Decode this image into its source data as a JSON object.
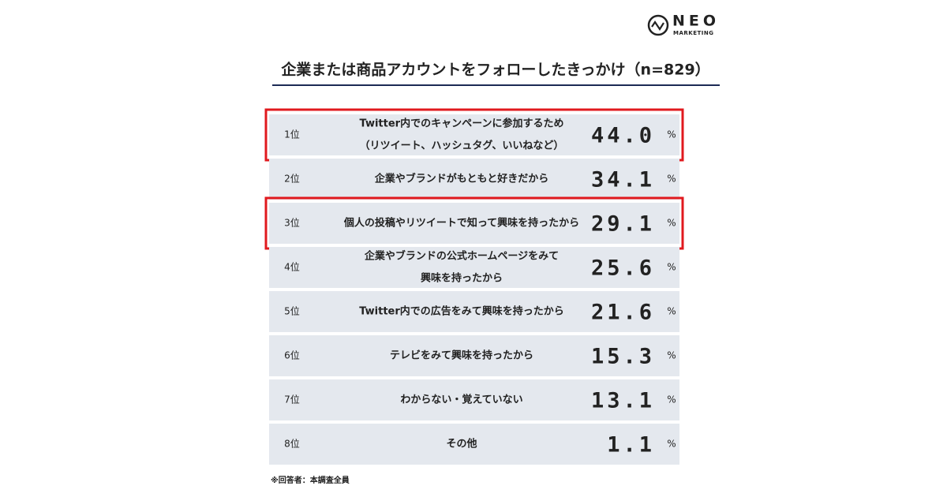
{
  "logo": {
    "name": "NEO",
    "sub": "MARKETING"
  },
  "title": "企業または商品アカウントをフォローしたきっかけ（n=829）",
  "unit": "%",
  "table": {
    "rows": [
      {
        "rank": "1位",
        "text": [
          "Twitter内でのキャンペーンに参加するため",
          "（リツイート、ハッシュタグ、いいねなど）"
        ],
        "value": "44.0",
        "highlight": true,
        "top": true
      },
      {
        "rank": "2位",
        "text": [
          "企業やブランドがもともと好きだから"
        ],
        "value": "34.1",
        "highlight": false,
        "top": true
      },
      {
        "rank": "3位",
        "text": [
          "個人の投稿やリツイートで知って興味を持ったから"
        ],
        "value": "29.1",
        "highlight": true,
        "top": true
      },
      {
        "rank": "4位",
        "text": [
          "企業やブランドの公式ホームページをみて",
          "興味を持ったから"
        ],
        "value": "25.6",
        "highlight": false,
        "top": false
      },
      {
        "rank": "5位",
        "text": [
          "Twitter内での広告をみて興味を持ったから"
        ],
        "value": "21.6",
        "highlight": false,
        "top": false
      },
      {
        "rank": "6位",
        "text": [
          "テレビをみて興味を持ったから"
        ],
        "value": "15.3",
        "highlight": false,
        "top": false
      },
      {
        "rank": "7位",
        "text": [
          "わからない・覚えていない"
        ],
        "value": "13.1",
        "highlight": false,
        "top": false
      },
      {
        "rank": "8位",
        "text": [
          "その他"
        ],
        "value": "1.1",
        "highlight": false,
        "top": false
      }
    ]
  },
  "footnote": "※回答者：本調査全員"
}
